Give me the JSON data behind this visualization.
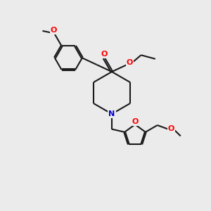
{
  "bg_color": "#ebebeb",
  "bond_color": "#1a1a1a",
  "atom_colors": {
    "O": "#ff0000",
    "N": "#0000cc",
    "C": "#1a1a1a"
  },
  "line_width": 1.5,
  "figsize": [
    3.0,
    3.0
  ],
  "dpi": 100,
  "xlim": [
    0,
    10
  ],
  "ylim": [
    0,
    10
  ]
}
